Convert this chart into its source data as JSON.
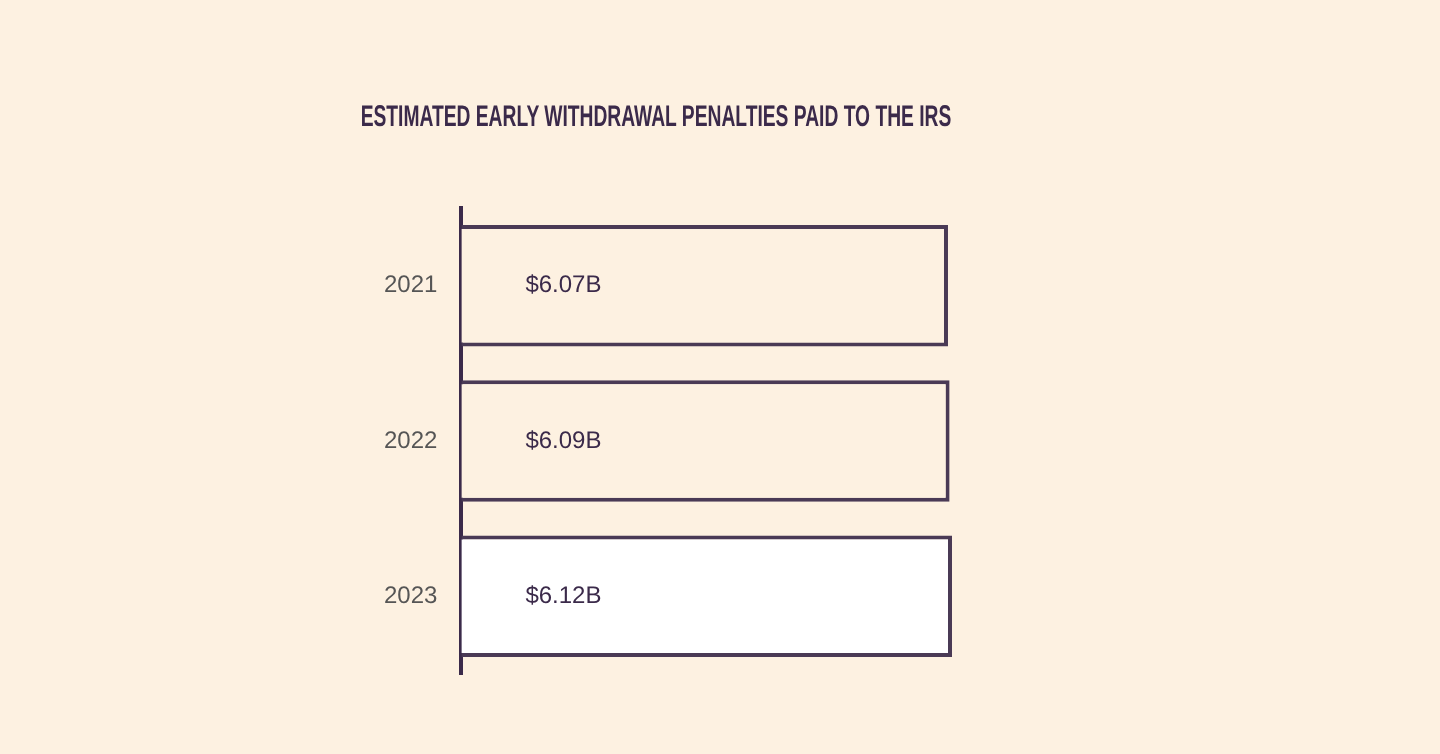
{
  "chart_data": {
    "type": "bar",
    "orientation": "horizontal",
    "title": "ESTIMATED EARLY WITHDRAWAL PENALTIES PAID TO THE IRS",
    "categories": [
      "2021",
      "2022",
      "2023"
    ],
    "values": [
      6.07,
      6.09,
      6.12
    ],
    "value_labels": [
      "$6.07B",
      "$6.09B",
      "$6.12B"
    ],
    "colors": [
      "#fdf1e1",
      "#fdf1e1",
      "#ffffff"
    ],
    "legend": false
  }
}
